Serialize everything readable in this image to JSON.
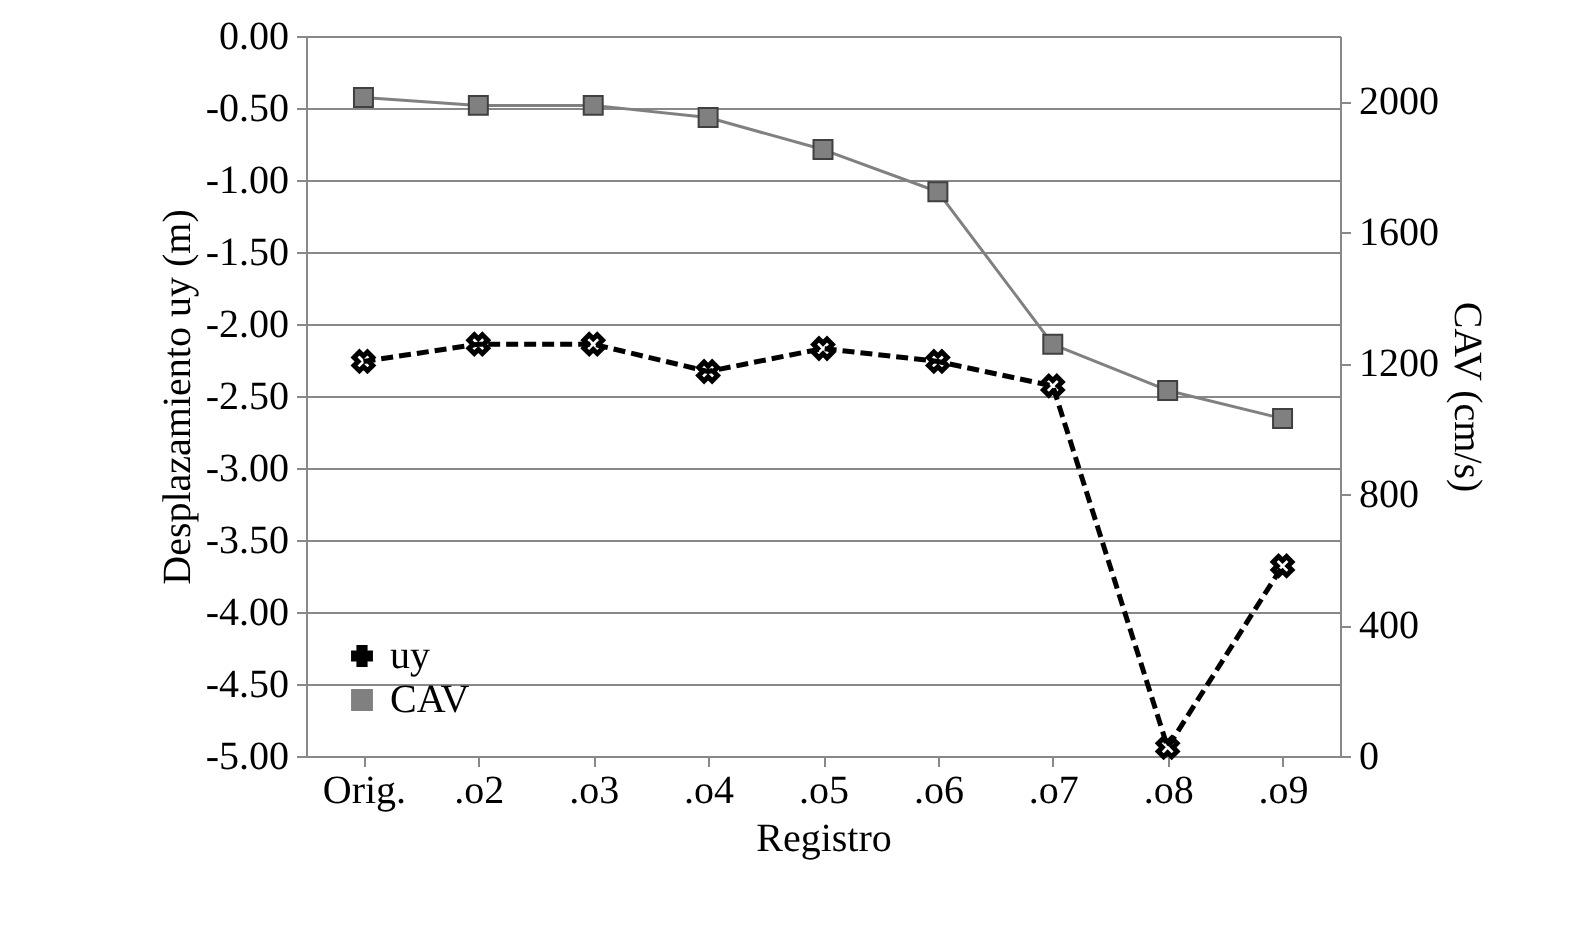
{
  "chart_data": {
    "type": "line",
    "xlabel": "Registro",
    "ylabel": "Desplazamiento uy (m)",
    "y2label": "CAV (cm/s)",
    "categories": [
      "Orig.",
      ".o2",
      ".o3",
      ".o4",
      ".o5",
      ".o6",
      ".o7",
      ".o8",
      ".o9"
    ],
    "series": [
      {
        "name": "uy",
        "color": "#000000",
        "marker": "cross",
        "line_style": "dashed",
        "values": [
          -2.26,
          -2.14,
          -2.14,
          -2.33,
          -2.17,
          -2.26,
          -2.43,
          -4.94,
          -3.68
        ]
      },
      {
        "name": "CAV",
        "color": "#808080",
        "marker": "square",
        "line_style": "solid",
        "axis": "y2",
        "values": [
          2012,
          1988,
          1988,
          1951,
          1853,
          1724,
          1258,
          1117,
          1031
        ]
      }
    ],
    "ylim": [
      -5,
      0
    ],
    "yticks": [
      {
        "value": 0,
        "label": "0.00"
      },
      {
        "value": -0.5,
        "label": "-0.50"
      },
      {
        "value": -1,
        "label": "-1.00"
      },
      {
        "value": -1.5,
        "label": "-1.50"
      },
      {
        "value": -2,
        "label": "-2.00"
      },
      {
        "value": -2.5,
        "label": "-2.50"
      },
      {
        "value": -3,
        "label": "-3.00"
      },
      {
        "value": -3.5,
        "label": "-3.50"
      },
      {
        "value": -4,
        "label": "-4.00"
      },
      {
        "value": -4.5,
        "label": "-4.50"
      },
      {
        "value": -5,
        "label": "-5.00"
      }
    ],
    "y2lim": [
      0,
      2200
    ],
    "y2ticks": [
      0,
      400,
      800,
      1200,
      1600,
      2000
    ],
    "grid": "y",
    "legend": "bottom left"
  }
}
